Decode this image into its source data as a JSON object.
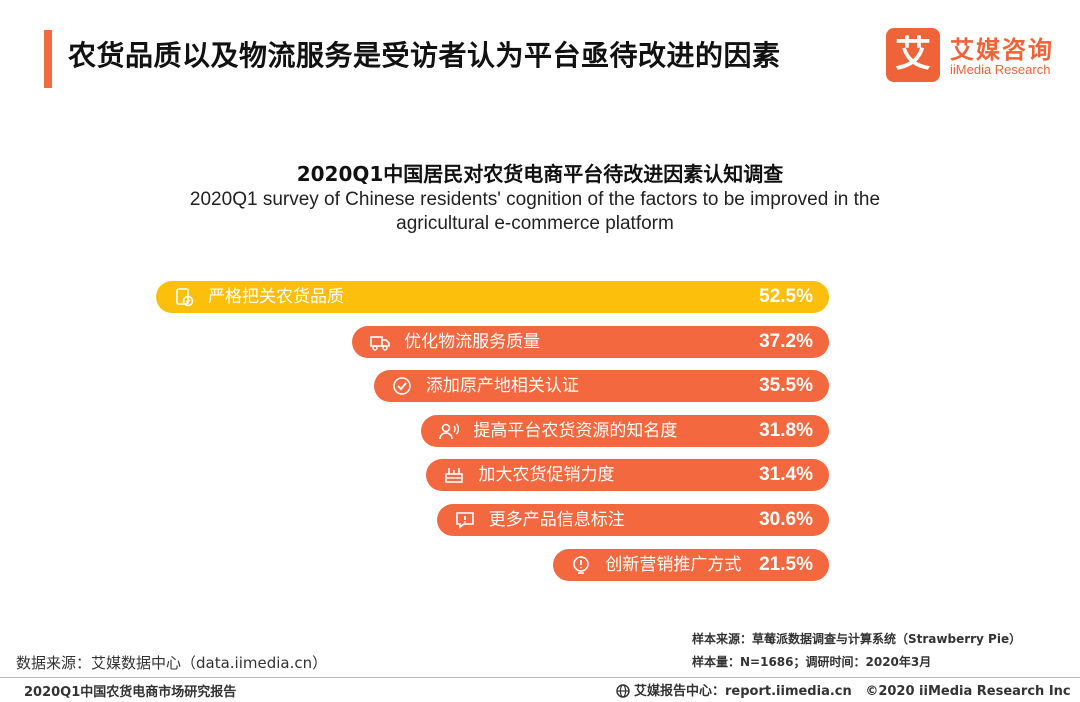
{
  "header": {
    "title": "农货品质以及物流服务是受访者认为平台亟待改进的因素",
    "logo_mark": "艾",
    "logo_cn": "艾媒咨询",
    "logo_en": "iiMedia Research"
  },
  "colors": {
    "accent": "#f26a3d",
    "highlight": "#fbbf0c",
    "bar": "#f4683f"
  },
  "chart_data": {
    "type": "bar",
    "orientation": "horizontal",
    "title": "2020Q1中国居民对农货电商平台待改进因素认知调查",
    "subtitle": "2020Q1 survey of Chinese residents' cognition of the factors to be improved in the agricultural e-commerce platform",
    "unit": "%",
    "categories": [
      "严格把关农货品质",
      "优化物流服务质量",
      "添加原产地相关认证",
      "提高平台农货资源的知名度",
      "加大农货促销力度",
      "更多产品信息标注",
      "创新营销推广方式"
    ],
    "values": [
      52.5,
      37.2,
      35.5,
      31.8,
      31.4,
      30.6,
      21.5
    ],
    "labels": [
      "52.5%",
      "37.2%",
      "35.5%",
      "31.8%",
      "31.4%",
      "30.6%",
      "21.5%"
    ],
    "icons": [
      "quality-check-icon",
      "delivery-truck-icon",
      "certified-check-icon",
      "megaphone-person-icon",
      "promotion-icon",
      "info-message-icon",
      "lightbulb-icon"
    ],
    "highlight_index": 0
  },
  "notes": {
    "source_left": "数据来源：艾媒数据中心（data.iimedia.cn）",
    "sample_source": "样本来源：草莓派数据调查与计算系统（Strawberry Pie）",
    "sample_size": "样本量：N=1686；调研时间：2020年3月"
  },
  "footer": {
    "report_name": "2020Q1中国农货电商市场研究报告",
    "report_center": "艾媒报告中心：report.iimedia.cn",
    "copyright": "©2020  iiMedia Research  Inc"
  }
}
